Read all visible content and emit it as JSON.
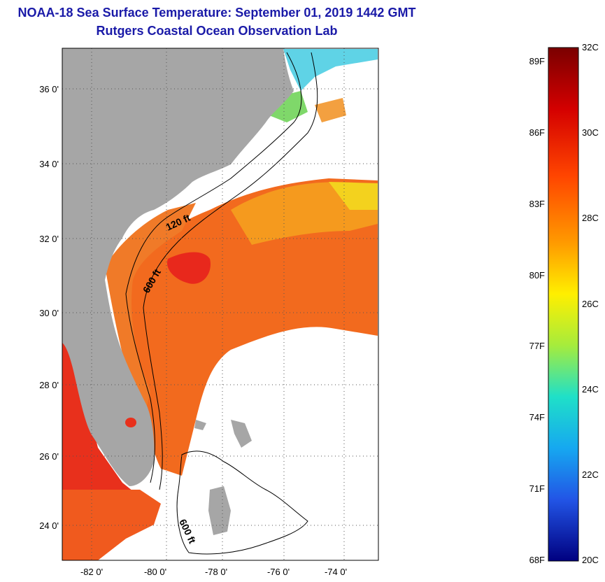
{
  "header": {
    "title": "NOAA-18 Sea Surface Temperature:  September 01, 2019 1442 GMT",
    "subtitle": "Rutgers Coastal Ocean Observation Lab"
  },
  "map": {
    "lat_labels": [
      "36 0'",
      "34 0'",
      "32 0'",
      "30 0'",
      "28 0'",
      "26 0'",
      "24 0'"
    ],
    "lon_labels": [
      "-82 0'",
      "-80 0'",
      "-78 0'",
      "-76 0'",
      "-74 0'"
    ],
    "contour_labels": [
      "120 ft",
      "600 ft",
      "600 ft"
    ]
  },
  "colorbar": {
    "fahrenheit": [
      "89F",
      "86F",
      "83F",
      "80F",
      "77F",
      "74F",
      "71F",
      "68F"
    ],
    "celsius": [
      "32C",
      "30C",
      "28C",
      "26C",
      "24C",
      "22C",
      "20C"
    ]
  },
  "colors": {
    "title": "#1a1aa8",
    "land": "#a6a6a6",
    "warm": "#f05a1e",
    "hot": "#e8261c",
    "cool": "#5fd3e6"
  }
}
